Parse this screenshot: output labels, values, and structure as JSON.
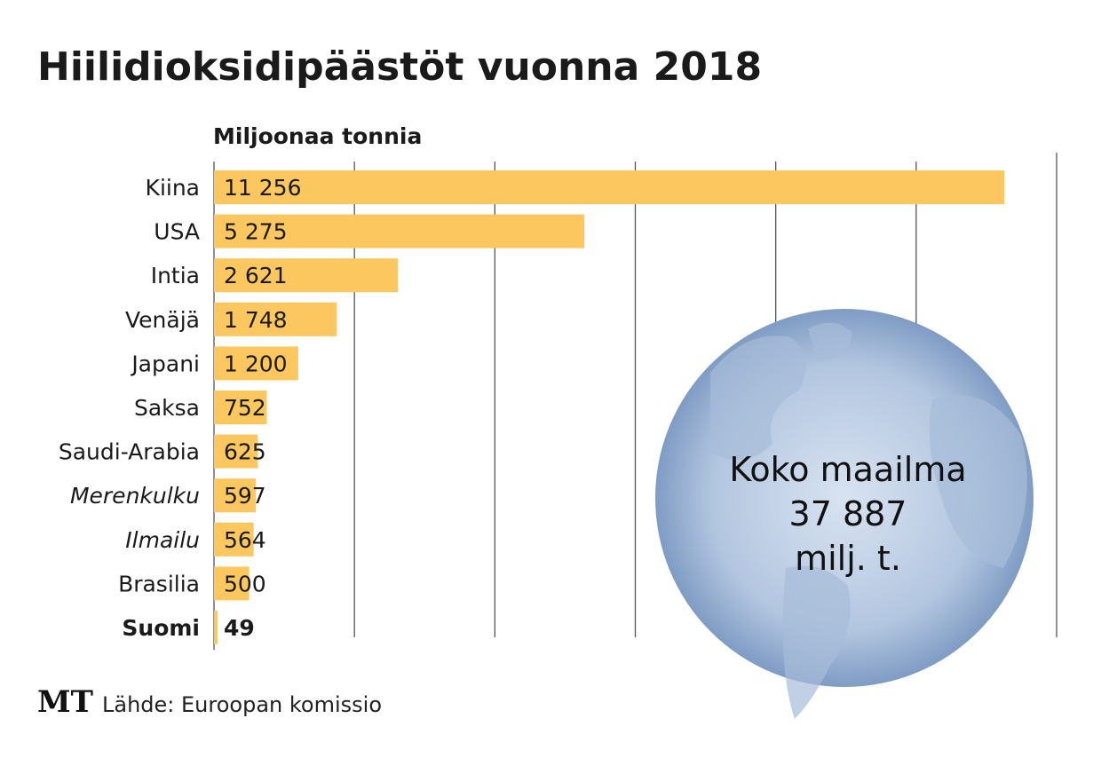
{
  "chart_data": {
    "type": "bar",
    "orientation": "horizontal",
    "title": "Hiilidioksidipäästöt vuonna 2018",
    "unit_label": "Miljoonaa tonnia",
    "categories": [
      "Kiina",
      "USA",
      "Intia",
      "Venäjä",
      "Japani",
      "Saksa",
      "Saudi-Arabia",
      "Merenkulku",
      "Ilmailu",
      "Brasilia",
      "Suomi"
    ],
    "values": [
      11256,
      5275,
      2621,
      1748,
      1200,
      752,
      625,
      597,
      564,
      500,
      49
    ],
    "value_labels": [
      "11 256",
      "5 275",
      "2 621",
      "1 748",
      "1 200",
      "752",
      "625",
      "597",
      "564",
      "500",
      "49"
    ],
    "category_styles": [
      "normal",
      "normal",
      "normal",
      "normal",
      "normal",
      "normal",
      "normal",
      "italic",
      "italic",
      "normal",
      "bold"
    ],
    "xlim": [
      0,
      12000
    ],
    "gridline_step": 2000,
    "grid": true,
    "bar_color": "#fcc75e",
    "annotation": {
      "line1": "Koko maailma",
      "line2": "37 887",
      "line3": "milj. t.",
      "globe_color": "#8fa8cc"
    },
    "source": "Lähde: Euroopan komissio",
    "logo": "MT"
  }
}
